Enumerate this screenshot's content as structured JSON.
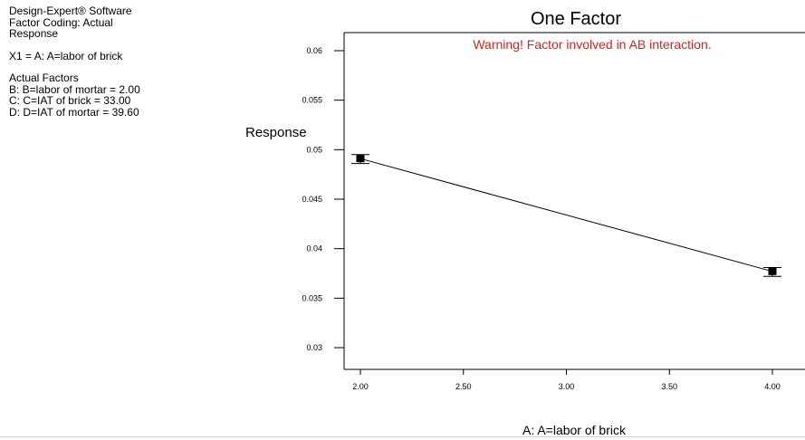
{
  "info": {
    "software": "Design-Expert® Software",
    "coding": "Factor Coding: Actual",
    "response": "Response",
    "x1": "X1 = A: A=labor of brick",
    "actual_factors_header": "Actual Factors",
    "factor_b": "B: B=labor of mortar = 2.00",
    "factor_c": "C: C=IAT of brick = 33.00",
    "factor_d": "D: D=IAT of mortar = 39.60"
  },
  "chart_data": {
    "type": "line",
    "title": "One Factor",
    "warning": "Warning! Factor involved in AB interaction.",
    "warning_color": "#e0201c",
    "xlabel": "A: A=labor of brick",
    "ylabel": "Response",
    "xlim": [
      1.9,
      4.12
    ],
    "ylim": [
      0.0282,
      0.0627
    ],
    "x_ticks": [
      2.0,
      2.5,
      3.0,
      3.5,
      4.0
    ],
    "x_tick_labels": [
      "2.00",
      "2.50",
      "3.00",
      "3.50",
      "4.00"
    ],
    "y_ticks": [
      0.03,
      0.035,
      0.04,
      0.045,
      0.05,
      0.055,
      0.06
    ],
    "y_tick_labels": [
      "0.03",
      "0.035",
      "0.04",
      "0.045",
      "0.05",
      "0.055",
      "0.06"
    ],
    "series": [
      {
        "x": [
          2.0,
          4.0
        ],
        "y": [
          0.0491,
          0.0377
        ],
        "error_low": [
          0.0486,
          0.0372
        ],
        "error_high": [
          0.0495,
          0.0381
        ]
      }
    ],
    "grid": false
  }
}
